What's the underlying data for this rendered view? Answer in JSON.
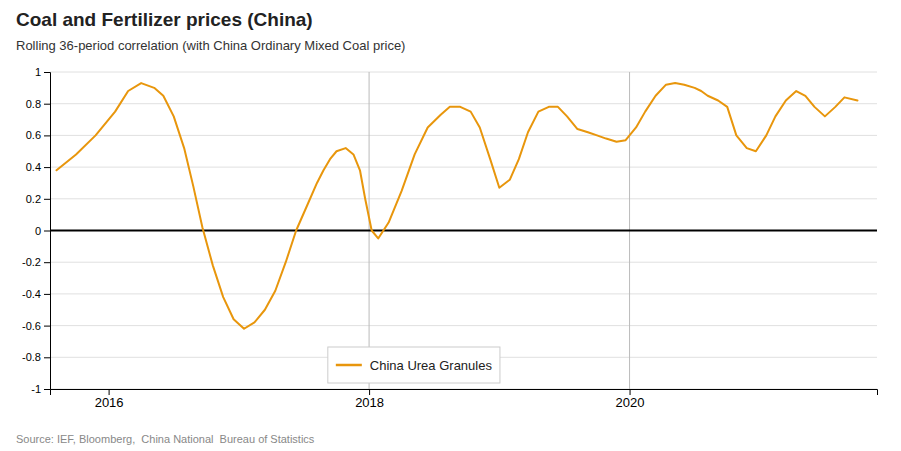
{
  "chart_data": {
    "type": "line",
    "title": "Coal and Fertilizer prices (China)",
    "subtitle": "Rolling 36-period correlation (with China Ordinary Mixed Coal price)",
    "source": "Source: IEF, Bloomberg,  China National  Bureau of Statistics",
    "x": [
      2015.6,
      2015.75,
      2015.9,
      2016.05,
      2016.15,
      2016.25,
      2016.35,
      2016.42,
      2016.5,
      2016.58,
      2016.65,
      2016.72,
      2016.8,
      2016.88,
      2016.96,
      2017.04,
      2017.12,
      2017.2,
      2017.28,
      2017.36,
      2017.44,
      2017.52,
      2017.6,
      2017.65,
      2017.7,
      2017.75,
      2017.82,
      2017.88,
      2017.93,
      2017.97,
      2018.02,
      2018.07,
      2018.15,
      2018.25,
      2018.35,
      2018.45,
      2018.55,
      2018.62,
      2018.7,
      2018.78,
      2018.85,
      2018.93,
      2019.0,
      2019.08,
      2019.15,
      2019.22,
      2019.3,
      2019.38,
      2019.45,
      2019.52,
      2019.6,
      2019.68,
      2019.75,
      2019.82,
      2019.9,
      2019.97,
      2020.05,
      2020.12,
      2020.2,
      2020.28,
      2020.35,
      2020.42,
      2020.5,
      2020.55,
      2020.6,
      2020.68,
      2020.75,
      2020.82,
      2020.9,
      2020.97,
      2021.05,
      2021.12,
      2021.2,
      2021.28,
      2021.35,
      2021.42,
      2021.5,
      2021.58,
      2021.65,
      2021.75
    ],
    "series": [
      {
        "name": "China Urea Granules",
        "color": "#E8960C",
        "values": [
          0.38,
          0.48,
          0.6,
          0.75,
          0.88,
          0.93,
          0.9,
          0.85,
          0.72,
          0.52,
          0.28,
          0.02,
          -0.22,
          -0.42,
          -0.56,
          -0.62,
          -0.58,
          -0.5,
          -0.38,
          -0.2,
          0.0,
          0.15,
          0.3,
          0.38,
          0.45,
          0.5,
          0.52,
          0.48,
          0.38,
          0.2,
          0.0,
          -0.05,
          0.05,
          0.25,
          0.48,
          0.65,
          0.73,
          0.78,
          0.78,
          0.75,
          0.65,
          0.45,
          0.27,
          0.32,
          0.45,
          0.62,
          0.75,
          0.78,
          0.78,
          0.72,
          0.64,
          0.62,
          0.6,
          0.58,
          0.56,
          0.57,
          0.65,
          0.75,
          0.85,
          0.92,
          0.93,
          0.92,
          0.9,
          0.88,
          0.85,
          0.82,
          0.78,
          0.6,
          0.52,
          0.5,
          0.6,
          0.72,
          0.82,
          0.88,
          0.85,
          0.78,
          0.72,
          0.78,
          0.84,
          0.82
        ]
      }
    ],
    "xlim": [
      2015.55,
      2021.9
    ],
    "xticks": [
      2016,
      2018,
      2020
    ],
    "ylim": [
      -1,
      1
    ],
    "yticks": [
      -1,
      -0.8,
      -0.6,
      -0.4,
      -0.2,
      0,
      0.2,
      0.4,
      0.6,
      0.8,
      1
    ],
    "vlines": [
      2018.0,
      2020.0
    ],
    "hlines": [
      0
    ],
    "grid": true,
    "legend": "bottom"
  }
}
